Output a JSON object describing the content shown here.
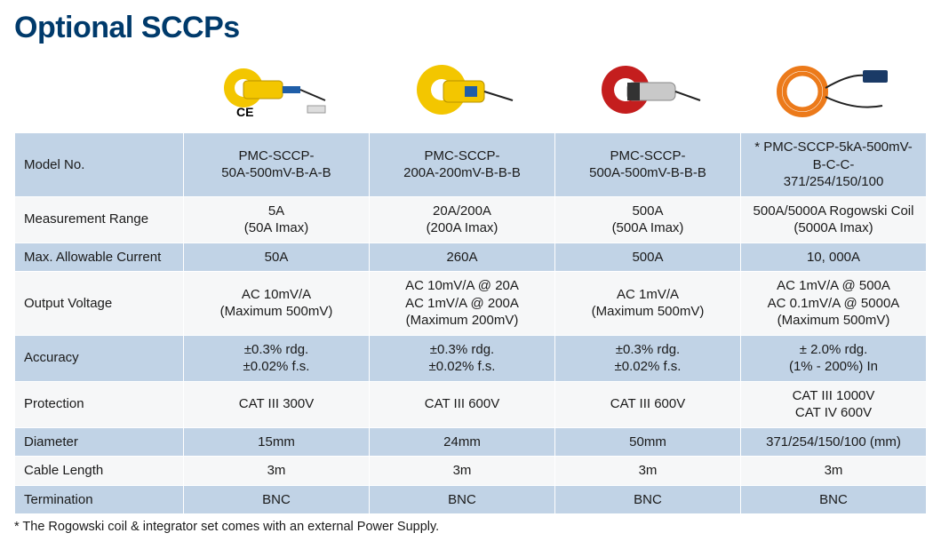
{
  "title": "Optional SCCPs",
  "footnote": "* The Rogowski coil & integrator set comes with an external Power Supply.",
  "colors": {
    "heading": "#003a6b",
    "alt_row": "#c1d3e6",
    "plain_row": "#f6f7f8",
    "border": "#ffffff"
  },
  "rows": {
    "model": {
      "label": "Model No.",
      "c1": "PMC-SCCP-\n50A-500mV-B-A-B",
      "c2": "PMC-SCCP-\n200A-200mV-B-B-B",
      "c3": "PMC-SCCP-\n500A-500mV-B-B-B",
      "c4": "* PMC-SCCP-5kA-500mV-B-C-C-\n371/254/150/100"
    },
    "range": {
      "label": "Measurement Range",
      "c1": "5A\n(50A Imax)",
      "c2": "20A/200A\n(200A Imax)",
      "c3": "500A\n(500A Imax)",
      "c4": "500A/5000A Rogowski Coil\n(5000A Imax)"
    },
    "maxI": {
      "label": "Max. Allowable Current",
      "c1": "50A",
      "c2": "260A",
      "c3": "500A",
      "c4": "10, 000A"
    },
    "output": {
      "label": "Output Voltage",
      "c1": "AC 10mV/A\n(Maximum 500mV)",
      "c2": "AC 10mV/A @ 20A\nAC 1mV/A @ 200A\n(Maximum 200mV)",
      "c3": "AC 1mV/A\n(Maximum 500mV)",
      "c4": "AC 1mV/A @ 500A\nAC 0.1mV/A @ 5000A\n(Maximum 500mV)"
    },
    "accuracy": {
      "label": "Accuracy",
      "c1": "±0.3% rdg.\n±0.02% f.s.",
      "c2": "±0.3% rdg.\n±0.02% f.s.",
      "c3": "±0.3% rdg.\n±0.02% f.s.",
      "c4": "± 2.0% rdg.\n(1% - 200%) In"
    },
    "protect": {
      "label": "Protection",
      "c1": "CAT III 300V",
      "c2": "CAT III 600V",
      "c3": "CAT III 600V",
      "c4": "CAT III 1000V\nCAT IV 600V"
    },
    "diameter": {
      "label": "Diameter",
      "c1": "15mm",
      "c2": "24mm",
      "c3": "50mm",
      "c4": "371/254/150/100 (mm)"
    },
    "cable": {
      "label": "Cable Length",
      "c1": "3m",
      "c2": "3m",
      "c3": "3m",
      "c4": "3m"
    },
    "term": {
      "label": "Termination",
      "c1": "BNC",
      "c2": "BNC",
      "c3": "BNC",
      "c4": "BNC"
    }
  },
  "images": {
    "ce_label": "CE",
    "p1": {
      "name": "clamp-50a-small-yellow"
    },
    "p2": {
      "name": "clamp-200a-large-yellow"
    },
    "p3": {
      "name": "clamp-500a-red-grey"
    },
    "p4": {
      "name": "rogowski-coil-orange"
    }
  }
}
